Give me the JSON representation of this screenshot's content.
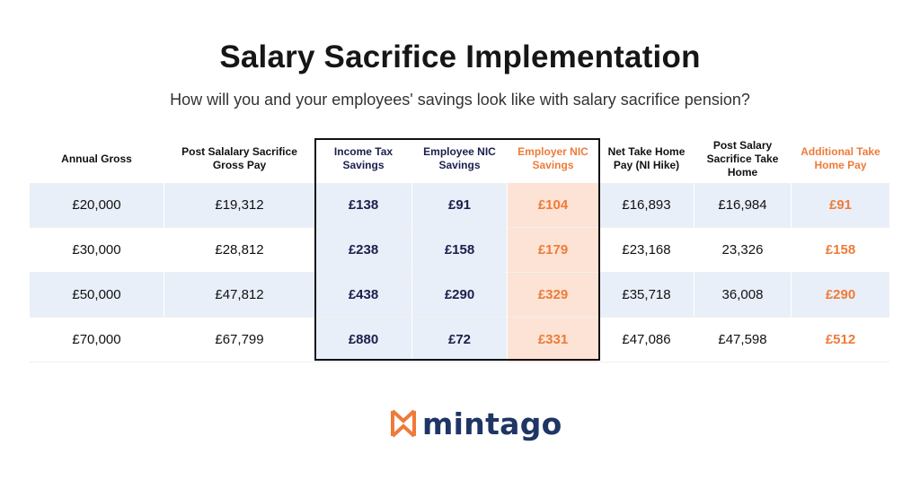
{
  "title": "Salary Sacrifice Implementation",
  "subtitle": "How will you and your employees' savings look like with salary sacrifice pension?",
  "colors": {
    "accent_orange": "#ee7b39",
    "navy": "#1b1f4d",
    "row_band": "#e9eff8",
    "employer_col": "#fce3d5",
    "logo_text": "#1f3565"
  },
  "chart_data": {
    "type": "table",
    "headers": [
      "Annual Gross",
      "Post Salalary Sacrifice Gross Pay",
      "Income Tax Savings",
      "Employee NIC Savings",
      "Employer NIC Savings",
      "Net Take Home Pay (NI Hike)",
      "Post Salary Sacrifice Take Home",
      "Additional Take Home Pay"
    ],
    "rows": [
      [
        "£20,000",
        "£19,312",
        "£138",
        "£91",
        "£104",
        "£16,893",
        "£16,984",
        "£91"
      ],
      [
        "£30,000",
        "£28,812",
        "£238",
        "£158",
        "£179",
        "£23,168",
        "23,326",
        "£158"
      ],
      [
        "£50,000",
        "£47,812",
        "£438",
        "£290",
        "£329",
        "£35,718",
        "36,008",
        "£290"
      ],
      [
        "£70,000",
        "£67,799",
        "£880",
        "£72",
        "£331",
        "£47,086",
        "£47,598",
        "£512"
      ]
    ]
  },
  "logo": {
    "icon": "mintago-logo-icon",
    "text": "mintago"
  }
}
